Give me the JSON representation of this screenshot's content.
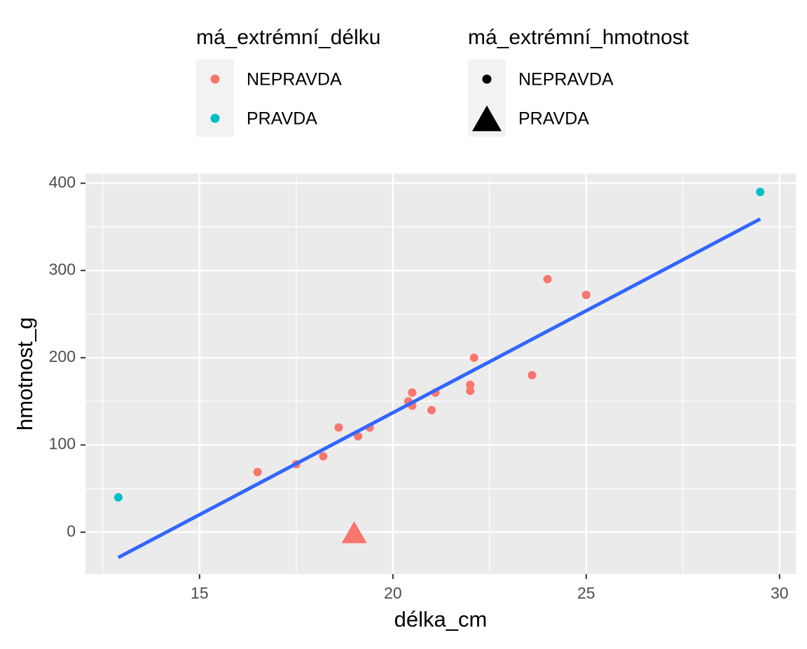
{
  "chart_data": {
    "type": "scatter",
    "x_label": "délka_cm",
    "y_label": "hmotnost_g",
    "xlim": [
      12.05,
      30.42
    ],
    "ylim": [
      -48,
      411
    ],
    "xticks": [
      15,
      20,
      25,
      30
    ],
    "yticks": [
      0,
      100,
      200,
      300,
      400
    ],
    "grid": true,
    "legend_position": "top",
    "legends": [
      {
        "title": "má_extrémní_délku",
        "entries": [
          {
            "label": "NEPRAVDA",
            "color": "#f8766d",
            "shape": "circle"
          },
          {
            "label": "PRAVDA",
            "color": "#00bfc4",
            "shape": "circle"
          }
        ]
      },
      {
        "title": "má_extrémní_hmotnost",
        "entries": [
          {
            "label": "NEPRAVDA",
            "color": "#000000",
            "shape": "circle"
          },
          {
            "label": "PRAVDA",
            "color": "#000000",
            "shape": "triangle"
          }
        ]
      }
    ],
    "series": [
      {
        "color": "#f8766d",
        "shape": "circle",
        "x": [
          16.5,
          17.5,
          18.2,
          18.6,
          19.1,
          19.4,
          20.4,
          20.5,
          20.5,
          21.0,
          21.1,
          22.0,
          22.0,
          22.1,
          23.6,
          24.0,
          25.0
        ],
        "values": [
          69,
          78,
          87,
          120,
          110,
          120,
          150,
          160,
          145,
          140,
          160,
          169,
          162,
          200,
          180,
          290,
          272
        ]
      },
      {
        "color": "#00bfc4",
        "shape": "circle",
        "x": [
          12.9,
          29.5
        ],
        "values": [
          40,
          390
        ]
      },
      {
        "color": "#f8766d",
        "shape": "triangle",
        "x": [
          19.0
        ],
        "values": [
          0
        ]
      }
    ],
    "trend": {
      "color": "#3366ff",
      "x": [
        12.9,
        29.5
      ],
      "values": [
        -29,
        359
      ]
    }
  }
}
